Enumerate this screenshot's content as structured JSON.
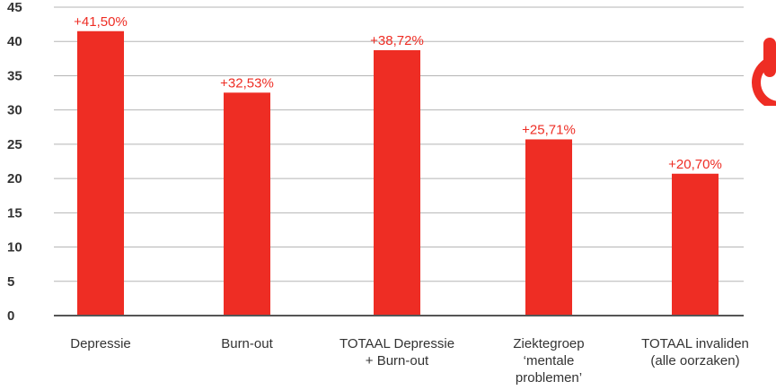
{
  "chart_data": {
    "type": "bar",
    "categories": [
      [
        "Depressie"
      ],
      [
        "Burn-out"
      ],
      [
        "TOTAAL Depressie",
        "+ Burn-out"
      ],
      [
        "Ziektegroep",
        "‘mentale",
        "problemen’"
      ],
      [
        "TOTAAL invaliden",
        "(alle oorzaken)"
      ]
    ],
    "values": [
      41.5,
      32.53,
      38.72,
      25.71,
      20.7
    ],
    "data_labels": [
      "+41,50%",
      "+32,53%",
      "+38,72%",
      "+25,71%",
      "+20,70%"
    ],
    "yticks": [
      "0",
      "5",
      "10",
      "15",
      "20",
      "25",
      "30",
      "35",
      "40",
      "45"
    ],
    "ylim": [
      0,
      45
    ],
    "grid": true,
    "colors": {
      "bar": "#ee2d24",
      "label": "#ee2d24",
      "grid": "#b5b5b5",
      "axis": "#555555"
    }
  },
  "logo": {
    "icon": "power-icon",
    "color": "#ee2d24"
  }
}
